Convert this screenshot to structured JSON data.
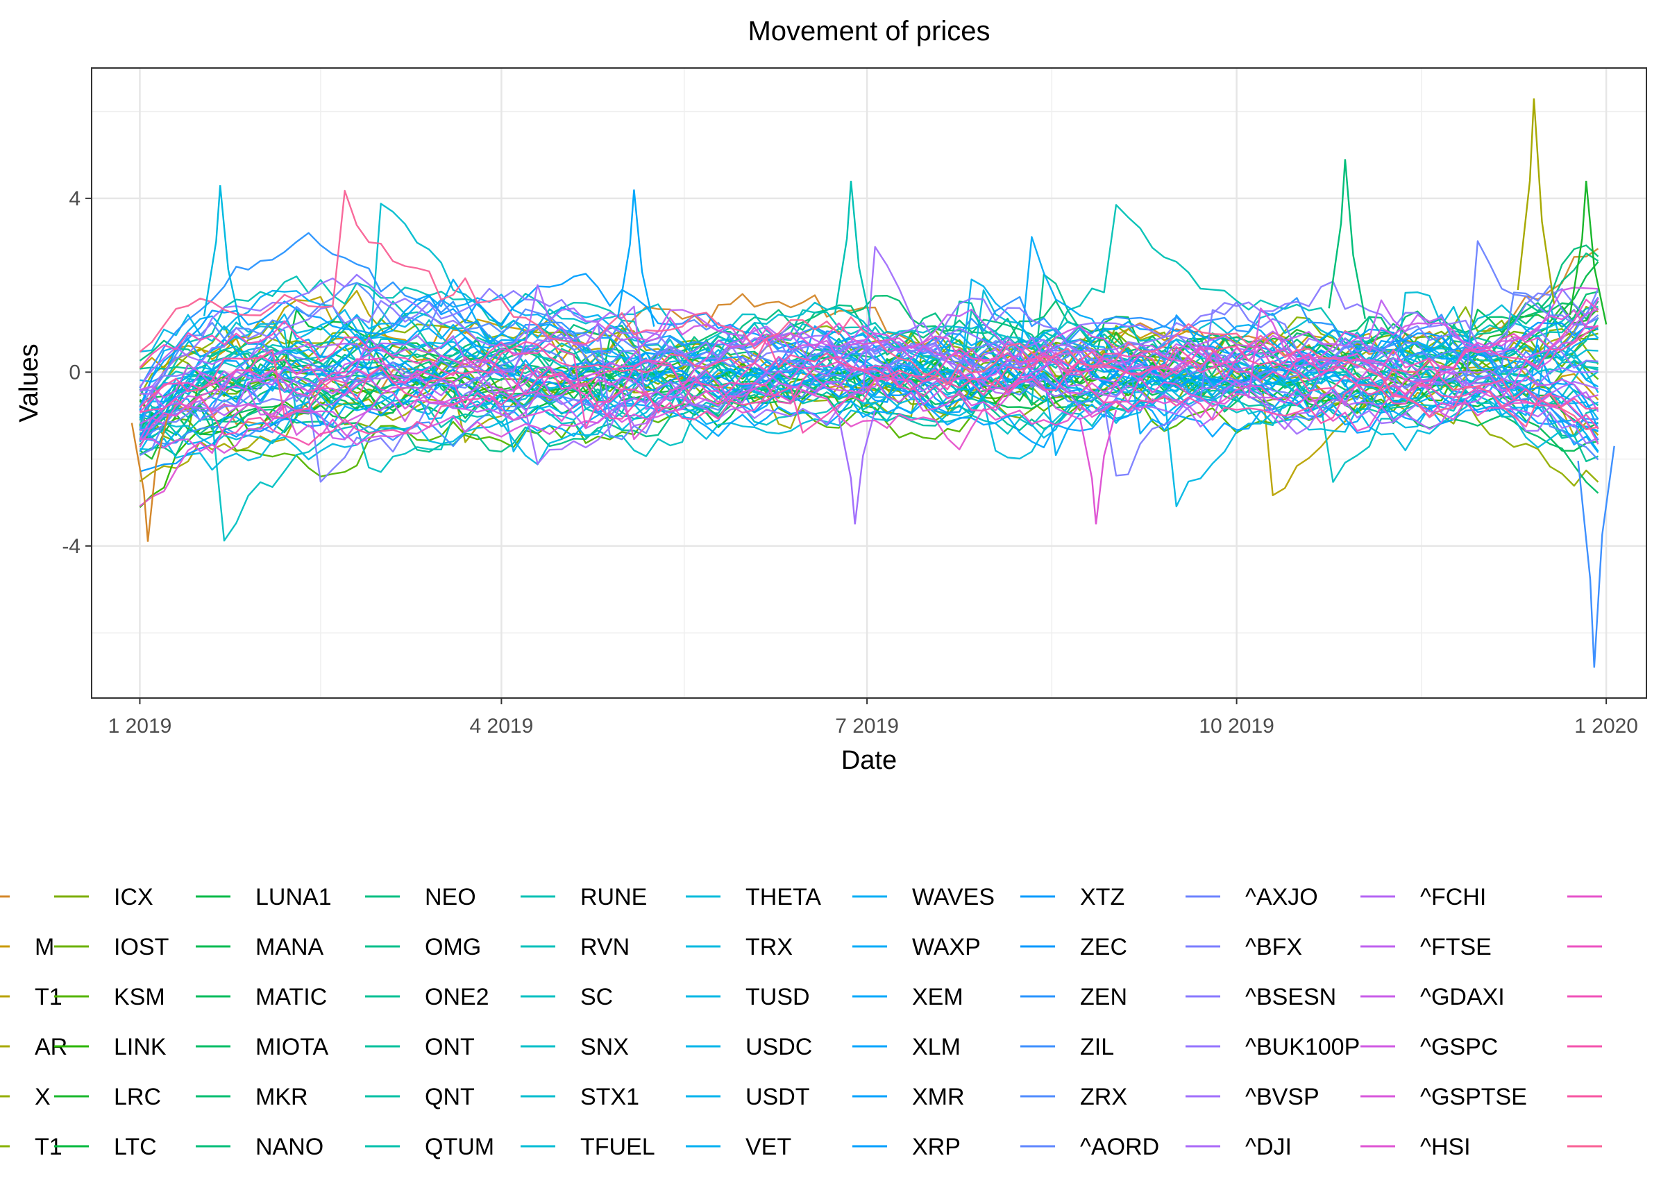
{
  "chart_data": {
    "type": "line",
    "title": "Movement of prices",
    "xlabel": "Date",
    "ylabel": "Values",
    "x_range": [
      "2019-01-01",
      "2020-01-01"
    ],
    "xlim": [
      "2018-12-20",
      "2020-01-11"
    ],
    "ylim": [
      -7.5,
      7.0
    ],
    "x_ticks": [
      {
        "date": "2019-01-01",
        "label": "1 2019"
      },
      {
        "date": "2019-04-01",
        "label": "4 2019"
      },
      {
        "date": "2019-07-01",
        "label": "7 2019"
      },
      {
        "date": "2019-10-01",
        "label": "10 2019"
      },
      {
        "date": "2020-01-01",
        "label": "1 2020"
      }
    ],
    "y_ticks": [
      {
        "value": -4,
        "label": "-4"
      },
      {
        "value": 0,
        "label": "0"
      },
      {
        "value": 4,
        "label": "4"
      }
    ],
    "grid": true,
    "legend_position": "bottom",
    "legend_columns": [
      {
        "entries": [
          {
            "label": "",
            "color": "#d4872a"
          },
          {
            "label": "M",
            "color": "#c99a00"
          },
          {
            "label": "T1",
            "color": "#b8a200"
          },
          {
            "label": "AR",
            "color": "#a7a900"
          },
          {
            "label": "X",
            "color": "#94ae00"
          },
          {
            "label": "T1",
            "color": "#88b200"
          }
        ]
      },
      {
        "entries": [
          {
            "label": "ICX",
            "color": "#7cae00"
          },
          {
            "label": "IOST",
            "color": "#6bb100"
          },
          {
            "label": "KSM",
            "color": "#54b400"
          },
          {
            "label": "LINK",
            "color": "#2bb600"
          },
          {
            "label": "LRC",
            "color": "#1ab72c"
          },
          {
            "label": "LTC",
            "color": "#00b93e"
          }
        ]
      },
      {
        "entries": [
          {
            "label": "LUNA1",
            "color": "#00ba48"
          },
          {
            "label": "MANA",
            "color": "#00bb52"
          },
          {
            "label": "MATIC",
            "color": "#00bc5c"
          },
          {
            "label": "MIOTA",
            "color": "#00bd66"
          },
          {
            "label": "MKR",
            "color": "#00be70"
          },
          {
            "label": "NANO",
            "color": "#00be79"
          }
        ]
      },
      {
        "entries": [
          {
            "label": "NEO",
            "color": "#00bf82"
          },
          {
            "label": "OMG",
            "color": "#00bf8b"
          },
          {
            "label": "ONE2",
            "color": "#00c094"
          },
          {
            "label": "ONT",
            "color": "#00c09c"
          },
          {
            "label": "QNT",
            "color": "#00c0a4"
          },
          {
            "label": "QTUM",
            "color": "#00c0ac"
          }
        ]
      },
      {
        "entries": [
          {
            "label": "RUNE",
            "color": "#00c1b4"
          },
          {
            "label": "RVN",
            "color": "#00c0bb"
          },
          {
            "label": "SC",
            "color": "#00c0c2"
          },
          {
            "label": "SNX",
            "color": "#00bfc8"
          },
          {
            "label": "STX1",
            "color": "#00bdcf"
          },
          {
            "label": "TFUEL",
            "color": "#00bcd5"
          }
        ]
      },
      {
        "entries": [
          {
            "label": "THETA",
            "color": "#00bbdb"
          },
          {
            "label": "TRX",
            "color": "#00b9e0"
          },
          {
            "label": "TUSD",
            "color": "#00b7e5"
          },
          {
            "label": "USDC",
            "color": "#00b5ea"
          },
          {
            "label": "USDT",
            "color": "#00b3ee"
          },
          {
            "label": "VET",
            "color": "#00b0f2"
          }
        ]
      },
      {
        "entries": [
          {
            "label": "WAVES",
            "color": "#00aef6"
          },
          {
            "label": "WAXP",
            "color": "#00abf9"
          },
          {
            "label": "XEM",
            "color": "#00a8fc"
          },
          {
            "label": "XLM",
            "color": "#00a5ff"
          },
          {
            "label": "XMR",
            "color": "#00a2ff"
          },
          {
            "label": "XRP",
            "color": "#009fff"
          }
        ]
      },
      {
        "entries": [
          {
            "label": "XTZ",
            "color": "#009bff"
          },
          {
            "label": "ZEC",
            "color": "#0098ff"
          },
          {
            "label": "ZEN",
            "color": "#2894ff"
          },
          {
            "label": "ZIL",
            "color": "#3e90ff"
          },
          {
            "label": "ZRX",
            "color": "#508cff"
          },
          {
            "label": "^AORD",
            "color": "#5f87ff"
          }
        ]
      },
      {
        "entries": [
          {
            "label": "^AXJO",
            "color": "#6d83ff"
          },
          {
            "label": "^BFX",
            "color": "#7b7eff"
          },
          {
            "label": "^BSESN",
            "color": "#8979ff"
          },
          {
            "label": "^BUK100P",
            "color": "#9574ff"
          },
          {
            "label": "^BVSP",
            "color": "#a16ffc"
          },
          {
            "label": "^DJI",
            "color": "#ab6af8"
          }
        ]
      },
      {
        "entries": [
          {
            "label": "^FCHI",
            "color": "#b565f4"
          },
          {
            "label": "^FTSE",
            "color": "#bf61ef"
          },
          {
            "label": "^GDAXI",
            "color": "#c85de9"
          },
          {
            "label": "^GSPC",
            "color": "#d05ae3"
          },
          {
            "label": "^GSPTSE",
            "color": "#d857dc"
          },
          {
            "label": "^HSI",
            "color": "#df55d4"
          }
        ]
      },
      {
        "entries": [
          {
            "label": "",
            "color": "#e654cb"
          },
          {
            "label": "",
            "color": "#ec53c2"
          },
          {
            "label": "",
            "color": "#f053b8"
          },
          {
            "label": "",
            "color": "#f454ad"
          },
          {
            "label": "",
            "color": "#f756a2"
          },
          {
            "label": "",
            "color": "#f96296"
          }
        ]
      }
    ],
    "highlighted_series_peaks": [
      {
        "date": "2019-12-14",
        "value": 6.3
      },
      {
        "date": "2019-12-27",
        "value": 4.4
      },
      {
        "date": "2019-10-28",
        "value": 4.9
      },
      {
        "date": "2019-06-27",
        "value": 4.4
      },
      {
        "date": "2019-01-21",
        "value": 4.3
      },
      {
        "date": "2019-05-04",
        "value": 4.2
      },
      {
        "date": "2019-12-29",
        "value": -6.8
      },
      {
        "date": "2019-06-28",
        "value": -3.5
      },
      {
        "date": "2019-08-27",
        "value": -3.5
      },
      {
        "date": "2019-01-03",
        "value": -3.9
      }
    ]
  }
}
